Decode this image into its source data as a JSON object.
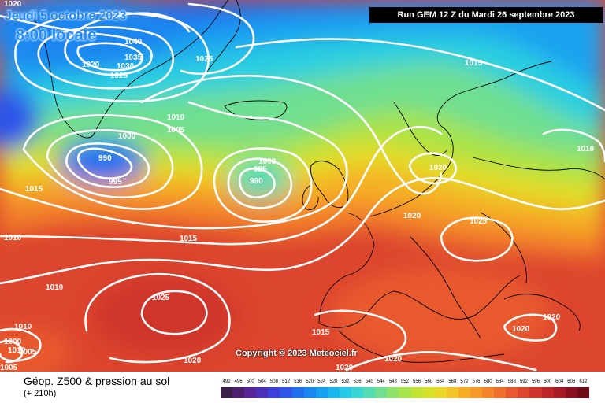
{
  "map": {
    "date_line": "Jeudi 5 octobre 2023",
    "time_line": "8:00 locale",
    "run_line": "Run GEM 12 Z du Mardi 26 septembre 2023",
    "copyright": "Copyright © 2023 Meteociel.fr",
    "footer_title": "Géop. Z500 & pression au sol",
    "footer_sub": "(+ 210h)"
  },
  "pressure_labels": [
    "1020",
    "1040",
    "1035",
    "1030",
    "1020",
    "1025",
    "1025",
    "1015",
    "1010",
    "1005",
    "1000",
    "990",
    "995",
    "1000",
    "995",
    "990",
    "1015",
    "1010",
    "1015",
    "1020",
    "1020",
    "1025",
    "1010",
    "1010",
    "1025",
    "1010",
    "1005",
    "1005",
    "1000",
    "1015",
    "1020",
    "1020",
    "1020",
    "1020",
    "1015",
    "1010",
    "1020"
  ],
  "legend": {
    "values": [
      "492",
      "496",
      "500",
      "504",
      "508",
      "512",
      "516",
      "520",
      "524",
      "528",
      "532",
      "536",
      "540",
      "544",
      "548",
      "552",
      "556",
      "560",
      "564",
      "568",
      "572",
      "576",
      "580",
      "584",
      "588",
      "592",
      "596",
      "600",
      "604",
      "608",
      "612"
    ],
    "colors": [
      "#3b1f47",
      "#4e1f6e",
      "#5a2596",
      "#4c2fb7",
      "#3c3fd8",
      "#2f55e8",
      "#1f6fef",
      "#1a86f0",
      "#18a0f0",
      "#1cb6ee",
      "#26c9e8",
      "#3ad6d4",
      "#56dcb4",
      "#72df90",
      "#8ee26c",
      "#a7e34a",
      "#c0e434",
      "#d6e22a",
      "#e8d628",
      "#f2c427",
      "#f6ae27",
      "#f79a29",
      "#f4852b",
      "#ef6f2d",
      "#e85a2e",
      "#dd462e",
      "#cf342c",
      "#bd2428",
      "#a51a24",
      "#8a121e",
      "#6e0c18"
    ]
  }
}
